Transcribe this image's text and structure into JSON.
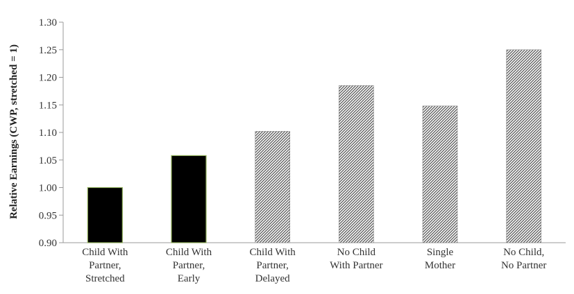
{
  "chart_data": {
    "type": "bar",
    "categories": [
      [
        "Child With",
        "Partner,",
        "Stretched"
      ],
      [
        "Child With",
        "Partner,",
        "Early"
      ],
      [
        "Child With",
        "Partner,",
        "Delayed"
      ],
      [
        "No Child",
        "With Partner"
      ],
      [
        "Single",
        "Mother"
      ],
      [
        "No Child,",
        "No Partner"
      ]
    ],
    "values": [
      1.0,
      1.058,
      1.102,
      1.185,
      1.148,
      1.25
    ],
    "fills": [
      "solid",
      "solid",
      "hatched",
      "hatched",
      "hatched",
      "hatched"
    ],
    "ylabel": "Relative Earnings (CWP, stretched = 1)",
    "ylim": [
      0.9,
      1.3
    ],
    "yticks": [
      "0.90",
      "0.95",
      "1.00",
      "1.05",
      "1.10",
      "1.15",
      "1.20",
      "1.25",
      "1.30"
    ],
    "colors": {
      "solid": "#000000",
      "hatch": "#555555",
      "axis": "#999999",
      "bar_edge": "#8fae5a"
    },
    "grid": false,
    "legend": "none"
  }
}
